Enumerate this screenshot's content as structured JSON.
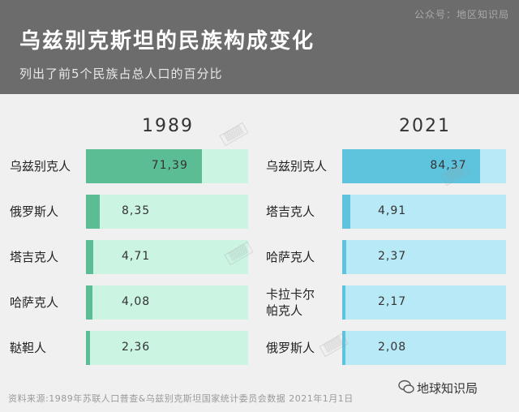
{
  "header": {
    "watermark": "公众号：地区知识局",
    "title": "乌兹别克斯坦的民族构成变化",
    "subtitle": "列出了前5个民族占总人口的百分比"
  },
  "footer": {
    "source": "资料来源:1989年苏联人口普查&乌兹别克斯坦国家统计委员会数据  2021年1月1日",
    "brand": "地球知识局"
  },
  "colors": {
    "left_fill": "#5bbd93",
    "left_track": "#cbf4e3",
    "right_fill": "#5ec3dd",
    "right_track": "#b8e9f6"
  },
  "chart_data": [
    {
      "type": "bar",
      "title": "1989",
      "categories": [
        "乌兹别克人",
        "俄罗斯人",
        "塔吉克人",
        "哈萨克人",
        "鞑靼人"
      ],
      "values": [
        71.39,
        8.35,
        4.71,
        4.08,
        2.36
      ],
      "value_labels": [
        "71,39",
        "8,35",
        "4,71",
        "4,08",
        "2,36"
      ],
      "xlim": [
        0,
        100
      ]
    },
    {
      "type": "bar",
      "title": "2021",
      "categories": [
        "乌兹别克人",
        "塔吉克人",
        "哈萨克人",
        "卡拉卡尔帕克人",
        "俄罗斯人"
      ],
      "category_labels": [
        "乌兹别克人",
        "塔吉克人",
        "哈萨克人",
        "卡拉卡尔\n帕克人",
        "俄罗斯人"
      ],
      "values": [
        84.37,
        4.91,
        2.37,
        2.17,
        2.08
      ],
      "value_labels": [
        "84,37",
        "4,91",
        "2,37",
        "2,17",
        "2,08"
      ],
      "xlim": [
        0,
        100
      ]
    }
  ]
}
